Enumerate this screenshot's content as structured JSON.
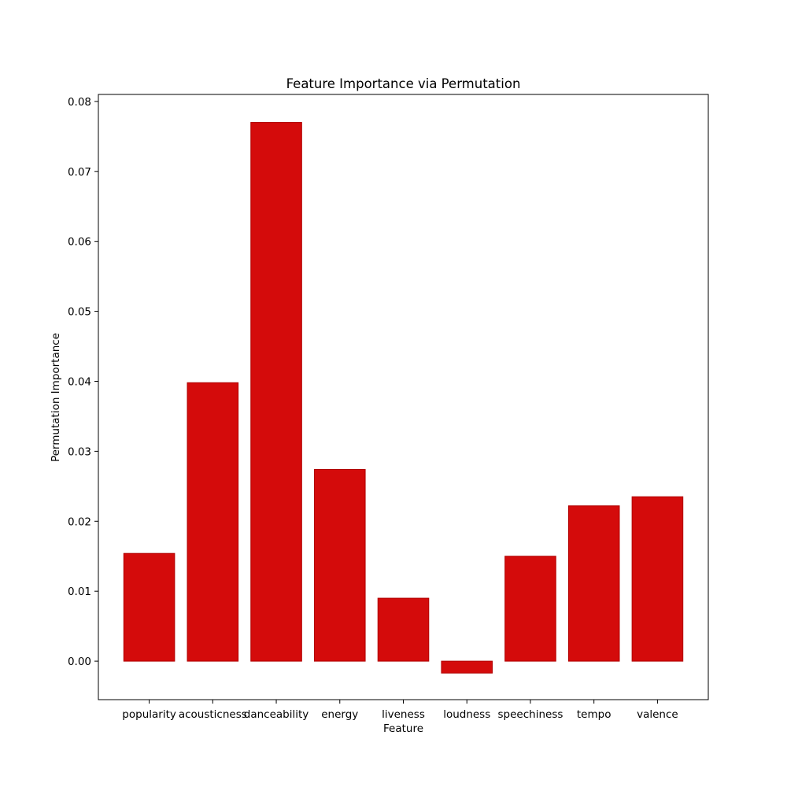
{
  "chart_data": {
    "type": "bar",
    "title": "Feature Importance via Permutation",
    "xlabel": "Feature",
    "ylabel": "Permutation Importance",
    "categories": [
      "popularity",
      "acousticness",
      "danceability",
      "energy",
      "liveness",
      "loudness",
      "speechiness",
      "tempo",
      "valence"
    ],
    "values": [
      0.0154,
      0.0398,
      0.077,
      0.0274,
      0.009,
      -0.0017,
      0.015,
      0.0222,
      0.0235
    ],
    "ylim": [
      -0.0055,
      0.081
    ],
    "yticks": [
      0.0,
      0.01,
      0.02,
      0.03,
      0.04,
      0.05,
      0.06,
      0.07,
      0.08
    ],
    "ytick_labels": [
      "0.00",
      "0.01",
      "0.02",
      "0.03",
      "0.04",
      "0.05",
      "0.06",
      "0.07",
      "0.08"
    ],
    "bar_color": "#d40b0b",
    "bar_edge_color": "#b00000",
    "grid": false,
    "legend": "none"
  }
}
